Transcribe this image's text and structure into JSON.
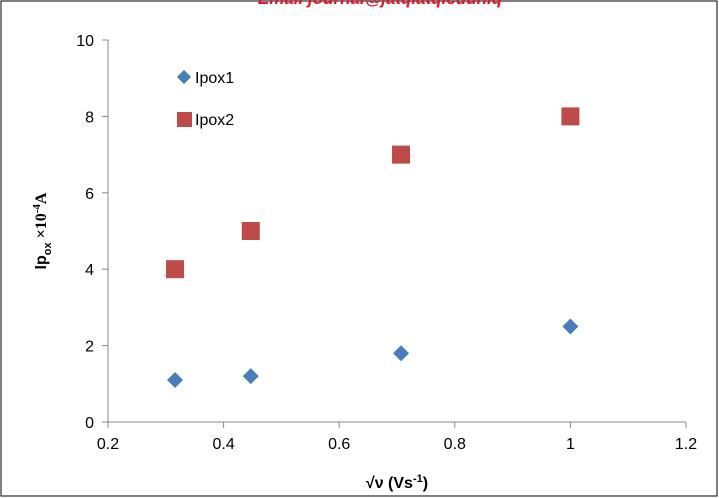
{
  "header_text": "Email journal@jatqiatqieduniq",
  "chart_data": {
    "type": "scatter",
    "xlabel_parts": {
      "base": "√ν (Vs",
      "sup": "-1",
      "end": ")"
    },
    "ylabel_parts": {
      "base": "Ip",
      "sub": "ox",
      "mid": " ×10",
      "sup": "-4",
      "end": "A"
    },
    "xlim": [
      0.2,
      1.2
    ],
    "ylim": [
      0,
      10
    ],
    "x_ticks": [
      "0.2",
      "0.4",
      "0.6",
      "0.8",
      "1",
      "1.2"
    ],
    "y_ticks": [
      "0",
      "2",
      "4",
      "6",
      "8",
      "10"
    ],
    "grid": false,
    "legend_position": "top-left",
    "series": [
      {
        "name": "Ipox1",
        "marker": "diamond",
        "color": "#4a7ebb",
        "x": [
          0.316,
          0.447,
          0.707,
          1.0
        ],
        "y": [
          1.1,
          1.2,
          1.8,
          2.5
        ]
      },
      {
        "name": "Ipox2",
        "marker": "square",
        "color": "#be4b48",
        "x": [
          0.316,
          0.447,
          0.707,
          1.0
        ],
        "y": [
          4,
          5,
          7,
          8
        ]
      }
    ]
  }
}
